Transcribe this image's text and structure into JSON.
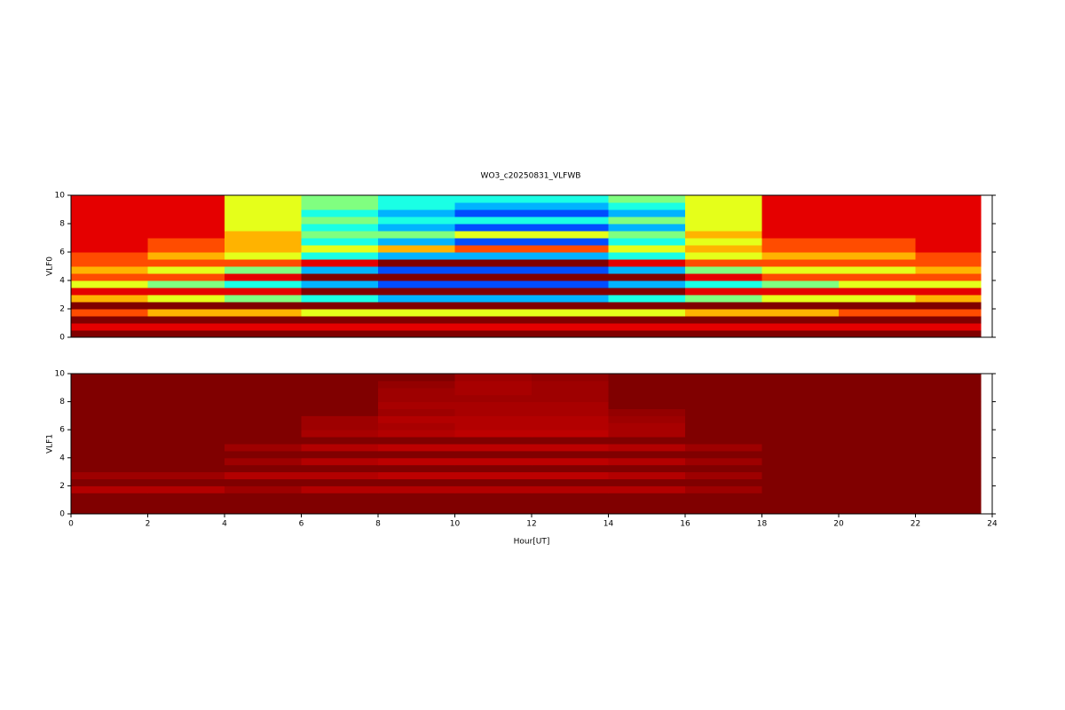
{
  "chart_data": [
    {
      "type": "heatmap",
      "title": "WO3_c20250831_VLFWB",
      "ylabel": "VLF0",
      "colormap": "jet",
      "xlim": [
        0,
        24
      ],
      "ylim": [
        0,
        10
      ],
      "yticks": [
        0,
        2,
        4,
        6,
        8,
        10
      ],
      "x_edges": [
        0,
        2,
        4,
        6,
        8,
        10,
        12,
        14,
        16,
        18,
        20,
        22,
        23.7
      ],
      "y_edges": [
        0,
        0.5,
        1,
        1.5,
        2,
        2.5,
        3,
        3.5,
        4,
        4.5,
        5,
        5.5,
        6,
        6.5,
        7,
        7.5,
        8,
        8.5,
        9,
        9.5,
        10
      ],
      "z": [
        [
          1,
          1,
          1,
          1,
          1,
          1,
          1,
          1,
          1,
          1,
          1,
          1
        ],
        [
          0.9,
          0.9,
          0.9,
          0.9,
          0.9,
          0.9,
          0.9,
          0.9,
          0.9,
          0.9,
          0.9,
          0.9
        ],
        [
          1,
          1,
          1,
          1,
          1,
          1,
          1,
          1,
          1,
          1,
          1,
          1
        ],
        [
          0.8,
          0.7,
          0.7,
          0.6,
          0.6,
          0.6,
          0.6,
          0.6,
          0.7,
          0.7,
          0.8,
          0.8
        ],
        [
          1,
          1,
          1,
          1,
          1,
          1,
          1,
          1,
          1,
          1,
          1,
          1
        ],
        [
          0.7,
          0.6,
          0.5,
          0.4,
          0.3,
          0.3,
          0.3,
          0.4,
          0.5,
          0.6,
          0.6,
          0.7
        ],
        [
          0.9,
          0.9,
          0.9,
          1,
          1,
          1,
          1,
          1,
          0.9,
          0.9,
          0.9,
          0.9
        ],
        [
          0.6,
          0.5,
          0.4,
          0.3,
          0.2,
          0.2,
          0.2,
          0.3,
          0.4,
          0.5,
          0.6,
          0.6
        ],
        [
          0.8,
          0.8,
          0.9,
          1,
          1,
          1,
          1,
          1,
          0.9,
          0.8,
          0.8,
          0.8
        ],
        [
          0.7,
          0.6,
          0.5,
          0.3,
          0.2,
          0.2,
          0.2,
          0.3,
          0.5,
          0.6,
          0.6,
          0.7
        ],
        [
          0.8,
          0.8,
          0.8,
          0.9,
          1,
          1,
          1,
          0.9,
          0.8,
          0.8,
          0.8,
          0.8
        ],
        [
          0.8,
          0.7,
          0.6,
          0.4,
          0.3,
          0.3,
          0.3,
          0.4,
          0.6,
          0.7,
          0.7,
          0.8
        ],
        [
          0.9,
          0.8,
          0.7,
          0.6,
          0.7,
          0.8,
          0.8,
          0.6,
          0.7,
          0.8,
          0.8,
          0.9
        ],
        [
          0.9,
          0.8,
          0.7,
          0.4,
          0.3,
          0.2,
          0.2,
          0.4,
          0.6,
          0.8,
          0.8,
          0.9
        ],
        [
          0.9,
          0.9,
          0.7,
          0.5,
          0.5,
          0.6,
          0.6,
          0.5,
          0.7,
          0.9,
          0.9,
          0.9
        ],
        [
          0.9,
          0.9,
          0.6,
          0.4,
          0.3,
          0.2,
          0.2,
          0.3,
          0.6,
          0.9,
          0.9,
          0.9
        ],
        [
          0.9,
          0.9,
          0.6,
          0.5,
          0.4,
          0.4,
          0.4,
          0.5,
          0.6,
          0.9,
          0.9,
          0.9
        ],
        [
          0.9,
          0.9,
          0.6,
          0.4,
          0.3,
          0.2,
          0.2,
          0.3,
          0.6,
          0.9,
          0.9,
          0.9
        ],
        [
          0.9,
          0.9,
          0.6,
          0.5,
          0.4,
          0.3,
          0.3,
          0.4,
          0.6,
          0.9,
          0.9,
          0.9
        ],
        [
          0.9,
          0.9,
          0.6,
          0.5,
          0.4,
          0.4,
          0.4,
          0.5,
          0.6,
          0.9,
          0.9,
          0.9
        ]
      ]
    },
    {
      "type": "heatmap",
      "ylabel": "VLF1",
      "xlabel": "Hour[UT]",
      "colormap": "jet",
      "xlim": [
        0,
        24
      ],
      "ylim": [
        0,
        10
      ],
      "yticks": [
        0,
        2,
        4,
        6,
        8,
        10
      ],
      "xticks": [
        0,
        2,
        4,
        6,
        8,
        10,
        12,
        14,
        16,
        18,
        20,
        22,
        24
      ],
      "x_edges": [
        0,
        2,
        4,
        6,
        8,
        10,
        12,
        14,
        16,
        18,
        20,
        22,
        23.7
      ],
      "y_edges": [
        0,
        0.5,
        1,
        1.5,
        2,
        2.5,
        3,
        3.5,
        4,
        4.5,
        5,
        5.5,
        6,
        6.5,
        7,
        7.5,
        8,
        8.5,
        9,
        9.5,
        10
      ],
      "z": [
        [
          1,
          1,
          1,
          1,
          1,
          1,
          1,
          1,
          1,
          1,
          1,
          1
        ],
        [
          1,
          1,
          1,
          1,
          1,
          1,
          1,
          1,
          1,
          1,
          1,
          1
        ],
        [
          1,
          1,
          1,
          1,
          1,
          1,
          1,
          1,
          1,
          1,
          1,
          1
        ],
        [
          0.95,
          0.95,
          0.97,
          0.95,
          0.95,
          0.95,
          0.95,
          0.95,
          0.97,
          1,
          1,
          1
        ],
        [
          1,
          1,
          1,
          1,
          1,
          1,
          1,
          1,
          1,
          1,
          1,
          1
        ],
        [
          0.97,
          0.97,
          0.95,
          0.95,
          0.94,
          0.94,
          0.94,
          0.95,
          0.97,
          1,
          1,
          1
        ],
        [
          1,
          1,
          1,
          1,
          1,
          1,
          1,
          1,
          1,
          1,
          1,
          1
        ],
        [
          1,
          1,
          0.97,
          0.95,
          0.94,
          0.94,
          0.94,
          0.95,
          0.97,
          1,
          1,
          1
        ],
        [
          1,
          1,
          1,
          1,
          1,
          1,
          1,
          1,
          1,
          1,
          1,
          1
        ],
        [
          1,
          1,
          0.97,
          0.95,
          0.94,
          0.94,
          0.94,
          0.95,
          0.97,
          1,
          1,
          1
        ],
        [
          1,
          1,
          1,
          1,
          1,
          1,
          1,
          1,
          1,
          1,
          1,
          1
        ],
        [
          1,
          1,
          1,
          0.96,
          0.95,
          0.94,
          0.94,
          0.96,
          1,
          1,
          1,
          1
        ],
        [
          1,
          1,
          1,
          0.97,
          0.96,
          0.95,
          0.95,
          0.96,
          1,
          1,
          1,
          1
        ],
        [
          1,
          1,
          1,
          0.97,
          0.95,
          0.95,
          0.95,
          0.97,
          1,
          1,
          1,
          1
        ],
        [
          1,
          1,
          1,
          1,
          0.97,
          0.96,
          0.96,
          0.98,
          1,
          1,
          1,
          1
        ],
        [
          1,
          1,
          1,
          1,
          0.96,
          0.96,
          0.96,
          1,
          1,
          1,
          1,
          1
        ],
        [
          1,
          1,
          1,
          1,
          0.97,
          0.97,
          0.97,
          1,
          1,
          1,
          1,
          1
        ],
        [
          1,
          1,
          1,
          1,
          0.97,
          0.96,
          0.97,
          1,
          1,
          1,
          1,
          1
        ],
        [
          1,
          1,
          1,
          1,
          0.98,
          0.96,
          0.97,
          1,
          1,
          1,
          1,
          1
        ],
        [
          1,
          1,
          1,
          1,
          1,
          0.97,
          0.98,
          1,
          1,
          1,
          1,
          1
        ]
      ]
    }
  ]
}
